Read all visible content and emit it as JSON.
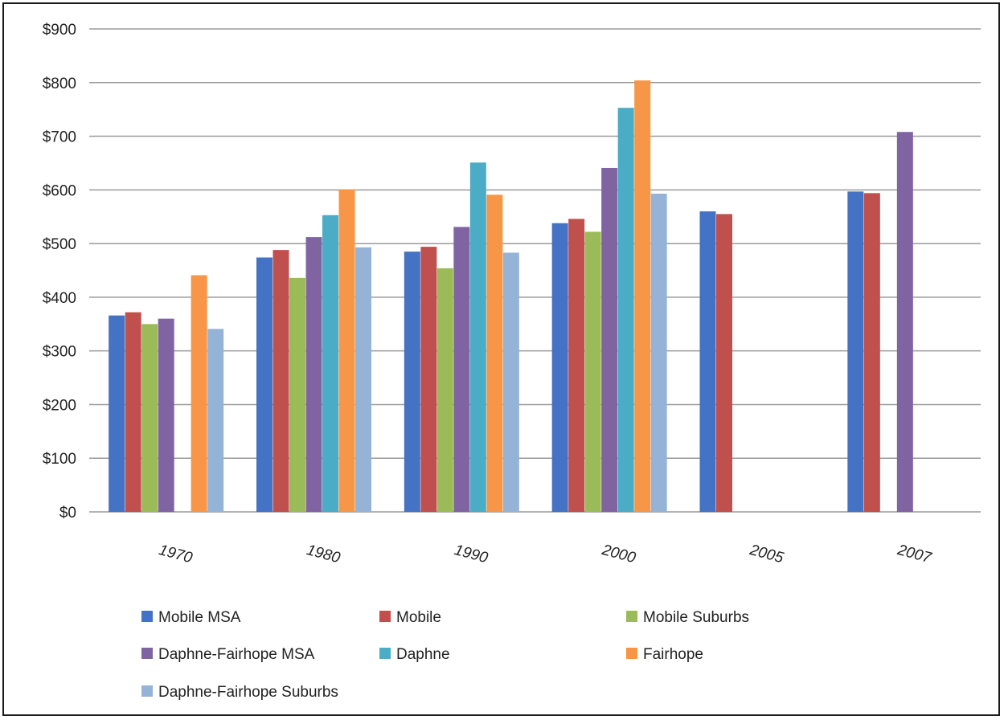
{
  "chart_data": {
    "type": "bar",
    "title": "",
    "xlabel": "",
    "ylabel": "",
    "categories": [
      "1970",
      "1980",
      "1990",
      "2000",
      "2005",
      "2007"
    ],
    "ylim": [
      0,
      900
    ],
    "yticks": [
      0,
      100,
      200,
      300,
      400,
      500,
      600,
      700,
      800,
      900
    ],
    "ytick_labels": [
      "$0",
      "$100",
      "$200",
      "$300",
      "$400",
      "$500",
      "$600",
      "$700",
      "$800",
      "$900"
    ],
    "grid": true,
    "legend_position": "bottom",
    "series": [
      {
        "name": "Mobile MSA",
        "color": "#4472C4",
        "values": [
          366,
          474,
          485,
          538,
          560,
          597
        ]
      },
      {
        "name": "Mobile",
        "color": "#C0504D",
        "values": [
          372,
          488,
          494,
          546,
          555,
          594
        ]
      },
      {
        "name": "Mobile Suburbs",
        "color": "#9BBB59",
        "values": [
          350,
          436,
          454,
          522,
          null,
          null
        ]
      },
      {
        "name": "Daphne-Fairhope MSA",
        "color": "#8064A2",
        "values": [
          360,
          512,
          531,
          641,
          null,
          708
        ]
      },
      {
        "name": "Daphne",
        "color": "#4BACC6",
        "values": [
          null,
          553,
          651,
          753,
          null,
          null
        ]
      },
      {
        "name": "Fairhope",
        "color": "#F79646",
        "values": [
          441,
          601,
          591,
          804,
          null,
          null
        ]
      },
      {
        "name": "Daphne-Fairhope Suburbs",
        "color": "#95B3D7",
        "values": [
          341,
          493,
          483,
          593,
          null,
          null
        ]
      }
    ]
  }
}
